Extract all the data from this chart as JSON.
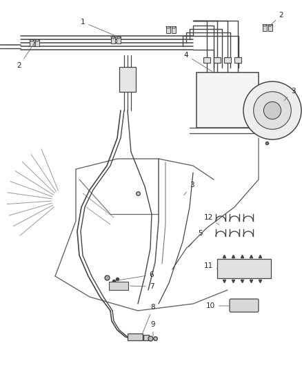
{
  "bg_color": "#ffffff",
  "line_color": "#444444",
  "label_color": "#222222",
  "callout_color": "#666666",
  "fig_width": 4.38,
  "fig_height": 5.33,
  "dpi": 100,
  "lw_main": 1.3,
  "lw_thin": 0.8,
  "lw_struct": 0.9,
  "lw_callout": 0.6,
  "fontsize": 7.5
}
